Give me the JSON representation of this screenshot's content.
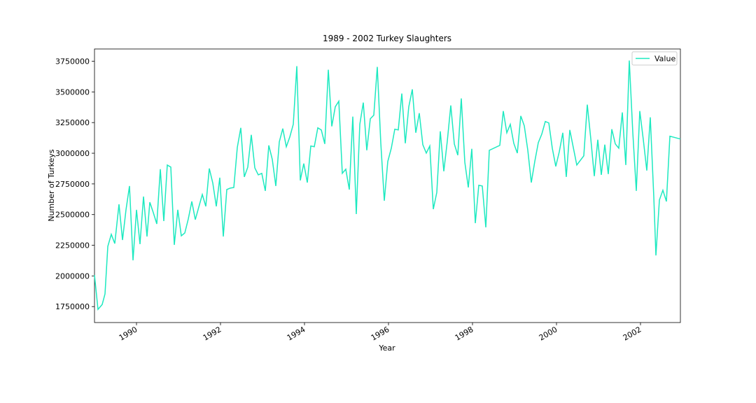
{
  "chart_data": {
    "type": "line",
    "title": "1989 - 2002 Turkey Slaughters",
    "xlabel": "Year",
    "ylabel": "Number of Turkeys",
    "x": [
      1989.0,
      1989.083,
      1989.183,
      1989.25,
      1989.317,
      1989.4,
      1989.483,
      1989.583,
      1989.667,
      1989.75,
      1989.833,
      1989.917,
      1990.0,
      1990.083,
      1990.167,
      1990.25,
      1990.317,
      1990.4,
      1990.483,
      1990.567,
      1990.65,
      1990.733,
      1990.817,
      1990.9,
      1990.983,
      1991.067,
      1991.15,
      1991.233,
      1991.317,
      1991.4,
      1991.483,
      1991.567,
      1991.65,
      1991.733,
      1991.817,
      1991.9,
      1991.983,
      1992.067,
      1992.15,
      1992.233,
      1992.317,
      1992.4,
      1992.483,
      1992.567,
      1992.65,
      1992.733,
      1992.817,
      1992.9,
      1992.983,
      1993.067,
      1993.15,
      1993.233,
      1993.317,
      1993.4,
      1993.483,
      1993.567,
      1993.65,
      1993.733,
      1993.817,
      1993.9,
      1993.983,
      1994.067,
      1994.15,
      1994.233,
      1994.317,
      1994.4,
      1994.483,
      1994.567,
      1994.65,
      1994.733,
      1994.817,
      1994.9,
      1994.983,
      1995.067,
      1995.15,
      1995.233,
      1995.317,
      1995.4,
      1995.483,
      1995.567,
      1995.65,
      1995.733,
      1995.817,
      1995.9,
      1995.983,
      1996.067,
      1996.15,
      1996.233,
      1996.317,
      1996.4,
      1996.483,
      1996.567,
      1996.65,
      1996.733,
      1996.817,
      1996.9,
      1996.983,
      1997.067,
      1997.15,
      1997.233,
      1997.317,
      1997.4,
      1997.483,
      1997.567,
      1997.65,
      1997.733,
      1997.817,
      1997.9,
      1997.983,
      1998.067,
      1998.15,
      1998.233,
      1998.317,
      1998.4,
      1998.65,
      1998.733,
      1998.817,
      1998.9,
      1998.983,
      1999.067,
      1999.15,
      1999.233,
      1999.317,
      1999.4,
      1999.483,
      1999.567,
      1999.65,
      1999.733,
      1999.817,
      1999.9,
      1999.983,
      2000.067,
      2000.15,
      2000.233,
      2000.317,
      2000.4,
      2000.483,
      2000.65,
      2000.733,
      2000.817,
      2000.9,
      2000.983,
      2001.067,
      2001.15,
      2001.233,
      2001.317,
      2001.4,
      2001.483,
      2001.567,
      2001.65,
      2001.733,
      2001.817,
      2001.9,
      2001.983,
      2002.067,
      2002.15,
      2002.233,
      2002.317,
      2002.367,
      2002.45,
      2002.533,
      2002.617,
      2002.7,
      2002.95
    ],
    "series": [
      {
        "name": "Value",
        "color": "#1de9c0",
        "values": [
          2007000,
          1727000,
          1767000,
          1853000,
          2241000,
          2339000,
          2264000,
          2584000,
          2293000,
          2539000,
          2733000,
          2127000,
          2539000,
          2259000,
          2647000,
          2321000,
          2601000,
          2516000,
          2424000,
          2870000,
          2447000,
          2904000,
          2887000,
          2253000,
          2539000,
          2327000,
          2350000,
          2464000,
          2607000,
          2459000,
          2561000,
          2664000,
          2567000,
          2876000,
          2756000,
          2567000,
          2801000,
          2321000,
          2704000,
          2716000,
          2721000,
          3047000,
          3207000,
          2807000,
          2887000,
          3150000,
          2881000,
          2824000,
          2836000,
          2693000,
          3064000,
          2950000,
          2733000,
          3093000,
          3201000,
          3053000,
          3133000,
          3236000,
          3710000,
          2779000,
          2916000,
          2761000,
          3059000,
          3053000,
          3207000,
          3190000,
          3076000,
          3681000,
          3219000,
          3379000,
          3424000,
          2836000,
          2870000,
          2704000,
          3299000,
          2504000,
          3236000,
          3413000,
          3024000,
          3281000,
          3310000,
          3704000,
          3081000,
          2613000,
          2933000,
          3041000,
          3196000,
          3190000,
          3487000,
          3081000,
          3379000,
          3521000,
          3167000,
          3327000,
          3070000,
          3001000,
          3059000,
          2544000,
          2681000,
          3179000,
          2853000,
          3099000,
          3390000,
          3076000,
          2984000,
          3447000,
          2927000,
          2721000,
          3036000,
          2430000,
          2739000,
          2733000,
          2396000,
          3024000,
          3064000,
          3344000,
          3167000,
          3236000,
          3081000,
          3001000,
          3304000,
          3224000,
          3024000,
          2761000,
          2933000,
          3087000,
          3156000,
          3259000,
          3247000,
          3041000,
          2893000,
          3013000,
          3167000,
          2807000,
          3190000,
          3047000,
          2904000,
          2979000,
          3396000,
          3116000,
          2813000,
          3110000,
          2824000,
          3070000,
          2830000,
          3196000,
          3076000,
          3041000,
          3333000,
          2904000,
          3756000,
          3167000,
          2693000,
          3344000,
          3110000,
          2859000,
          3293000,
          2641000,
          2167000,
          2619000,
          2699000,
          2607000,
          3139000,
          3116000
        ]
      }
    ],
    "xlim": [
      1989.0,
      2002.95
    ],
    "xticks": [
      1990,
      1992,
      1994,
      1996,
      1998,
      2000,
      2002
    ],
    "ylim": [
      1620000,
      3850000
    ],
    "yticks": [
      1750000,
      2000000,
      2250000,
      2500000,
      2750000,
      3000000,
      3250000,
      3500000,
      3750000
    ],
    "legend": "upper right",
    "grid": false
  }
}
